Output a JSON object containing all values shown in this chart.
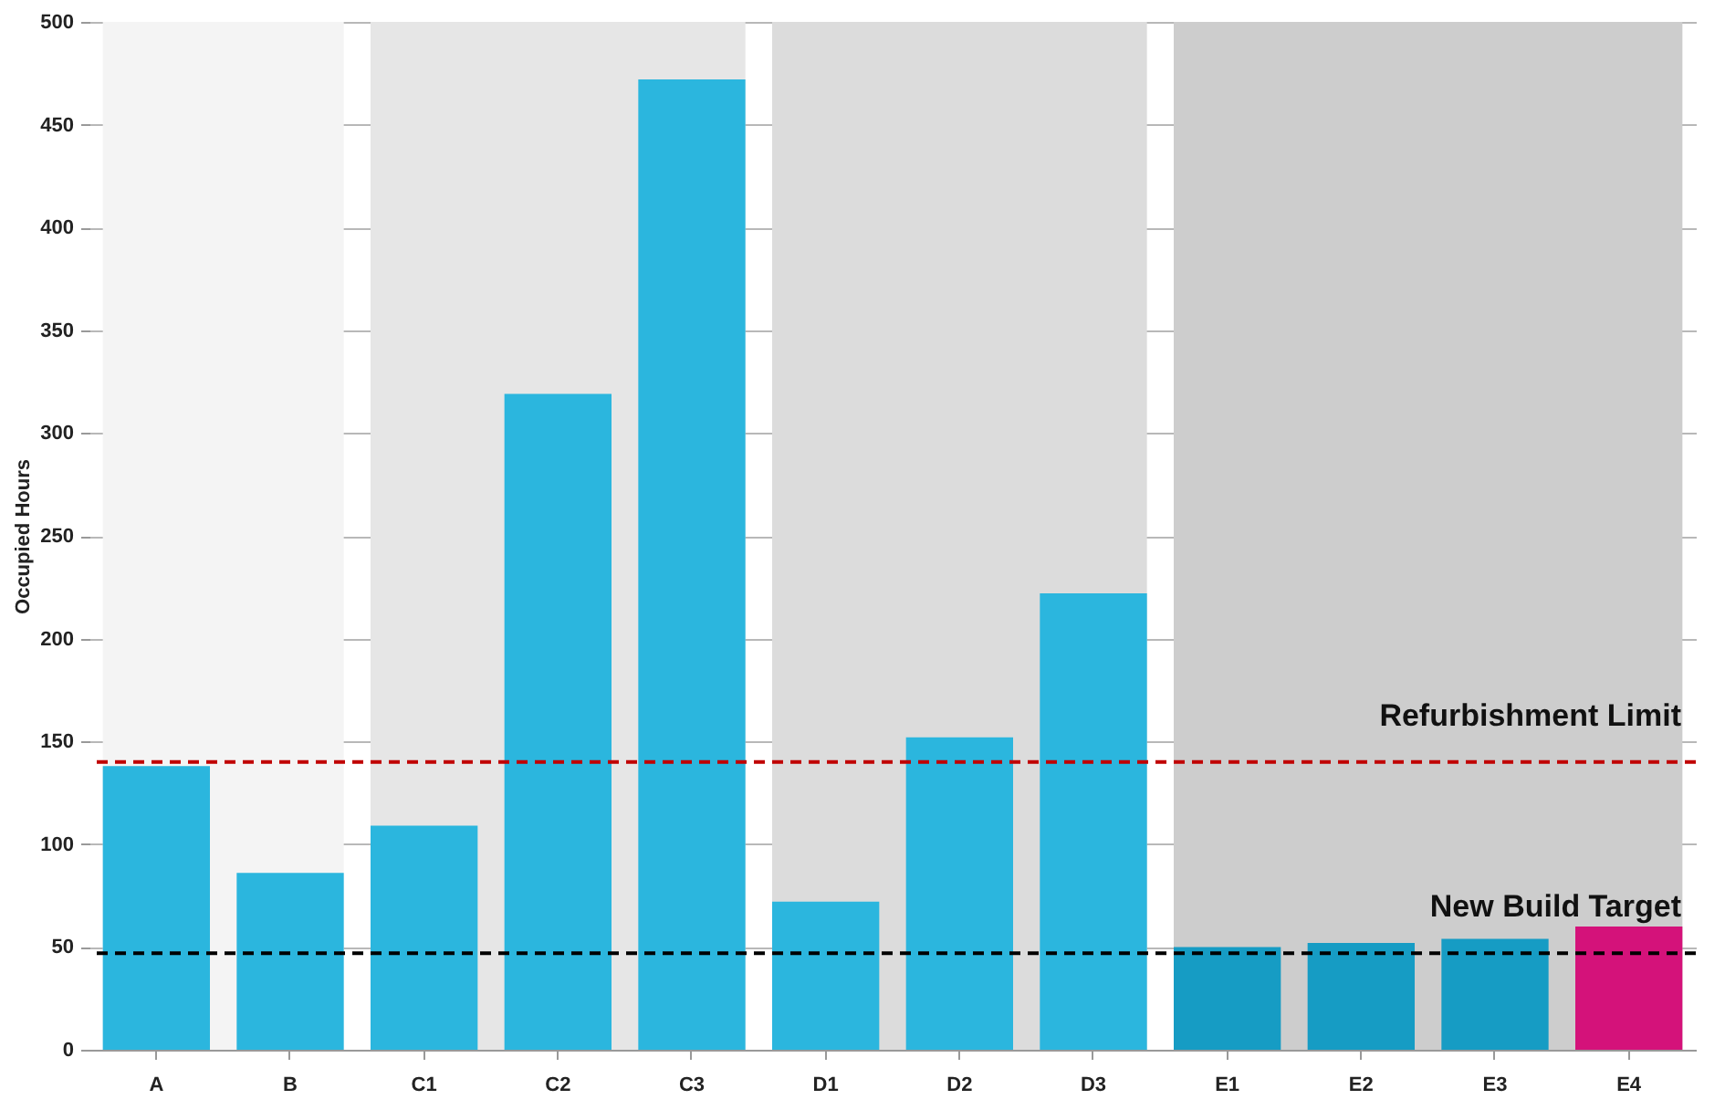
{
  "chart_data": {
    "type": "bar",
    "ylabel": "Occupied Hours",
    "categories": [
      "A",
      "B",
      "C1",
      "C2",
      "C3",
      "D1",
      "D2",
      "D3",
      "E1",
      "E2",
      "E3",
      "E4"
    ],
    "values": [
      138,
      86,
      109,
      319,
      472,
      72,
      152,
      222,
      50,
      52,
      54,
      60
    ],
    "colors": [
      "#2bb6de",
      "#2bb6de",
      "#2bb6de",
      "#2bb6de",
      "#2bb6de",
      "#2bb6de",
      "#2bb6de",
      "#2bb6de",
      "#169cc4",
      "#169cc4",
      "#169cc4",
      "#d4127a"
    ],
    "ylim": [
      0,
      500
    ],
    "yticks": [
      0,
      50,
      100,
      150,
      200,
      250,
      300,
      350,
      400,
      450,
      500
    ],
    "grid": "y",
    "ref_lines": [
      {
        "axis": "y",
        "value": 140,
        "label": "Refurbishment Limit",
        "color": "#c00000",
        "line_style": "dashed"
      },
      {
        "axis": "y",
        "value": 47,
        "label": "New Build Target",
        "color": "#000000",
        "line_style": "dashed"
      }
    ],
    "bands": [
      {
        "axis": "x",
        "from": "A",
        "to": "B",
        "color": "#f4f4f4"
      },
      {
        "axis": "x",
        "from": "C1",
        "to": "C3",
        "color": "#e6e6e6"
      },
      {
        "axis": "x",
        "from": "D1",
        "to": "D3",
        "color": "#dcdcdc"
      },
      {
        "axis": "x",
        "from": "E1",
        "to": "E4",
        "color": "#cdcdcd"
      }
    ]
  }
}
